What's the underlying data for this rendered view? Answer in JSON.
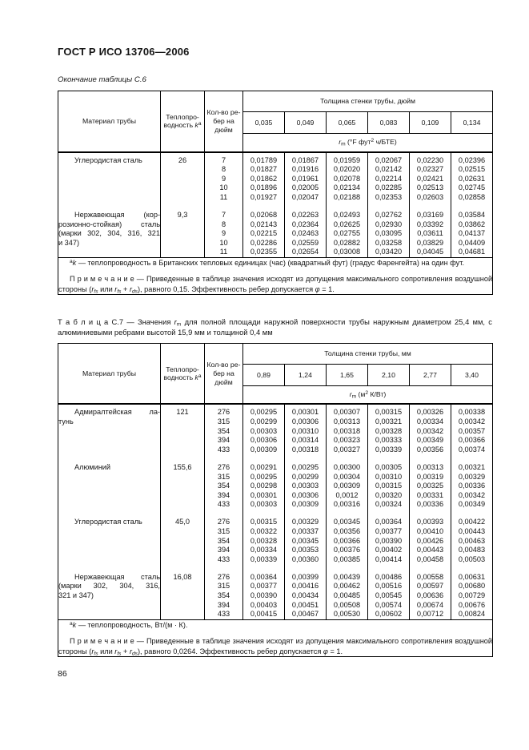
{
  "page": {
    "standard_code": "ГОСТ Р ИСО 13706—2006",
    "continuation_caption": "Окончание таблицы С.6",
    "page_number": "86"
  },
  "tables": [
    {
      "name": "table-c6",
      "caption": null,
      "header": {
        "material": "Материал трубы",
        "conductivity": [
          "Теплопро-\nводность ",
          {
            "t": "k",
            "i": true
          },
          {
            "t": "a",
            "sup": true
          }
        ],
        "fins_per_inch": "Кол-во ре-\nбер на\nдюйм",
        "thickness_title": "Толщина стенки трубы, дюйм",
        "thickness_values": [
          "0,035",
          "0,049",
          "0,065",
          "0,083",
          "0,109",
          "0,134"
        ],
        "rm_caption": [
          {
            "t": "r",
            "i": true
          },
          {
            "t": "m",
            "sub": true
          },
          {
            "t": " (°F фут"
          },
          {
            "t": "2",
            "sup": true
          },
          {
            "t": " ч/БТЕ)"
          }
        ]
      },
      "groups": [
        {
          "material_lines": [
            "Углеродистая сталь"
          ],
          "conductivity": "26",
          "rows": [
            [
              "7",
              "0,01789",
              "0,01867",
              "0,01959",
              "0,02067",
              "0,02230",
              "0,02396"
            ],
            [
              "8",
              "0,01827",
              "0,01916",
              "0,02020",
              "0,02142",
              "0,02327",
              "0,02515"
            ],
            [
              "9",
              "0,01862",
              "0,01961",
              "0,02078",
              "0,02214",
              "0,02421",
              "0,02631"
            ],
            [
              "10",
              "0,01896",
              "0,02005",
              "0,02134",
              "0,02285",
              "0,02513",
              "0,02745"
            ],
            [
              "11",
              "0,01927",
              "0,02047",
              "0,02188",
              "0,02353",
              "0,02603",
              "0,02858"
            ]
          ]
        },
        {
          "material_lines": [
            "Нержавеющая (кор-",
            "розионно-стойкая) сталь",
            "(марки 302, 304, 316, 321",
            "и 347)"
          ],
          "conductivity": "9,3",
          "rows": [
            [
              "7",
              "0,02068",
              "0,02263",
              "0,02493",
              "0,02762",
              "0,03169",
              "0,03584"
            ],
            [
              "8",
              "0,02143",
              "0,02364",
              "0,02625",
              "0,02930",
              "0,03392",
              "0,03862"
            ],
            [
              "9",
              "0,02215",
              "0,02463",
              "0,02755",
              "0,03095",
              "0,03611",
              "0,04137"
            ],
            [
              "10",
              "0,02286",
              "0,02559",
              "0,02882",
              "0,03258",
              "0,03829",
              "0,04409"
            ],
            [
              "11",
              "0,02355",
              "0,02654",
              "0,03008",
              "0,03420",
              "0,04045",
              "0,04681"
            ]
          ]
        }
      ],
      "footnote": [
        {
          "t": "a",
          "sup": true
        },
        {
          "t": "k",
          "i": true
        },
        {
          "t": " — теплопроводность в Британских тепловых единицах (час) (квадратный фут) (градус Фаренгейта) на один фут."
        }
      ],
      "note": [
        {
          "t": "П р и м е ч а н и е — Приведенные в таблице значения исходят из допущения максимального сопротивления воздушной стороны ("
        },
        {
          "t": "r",
          "i": true
        },
        {
          "t": "fs",
          "i": true,
          "sub": true
        },
        {
          "t": " или "
        },
        {
          "t": "r",
          "i": true
        },
        {
          "t": "fs",
          "i": true,
          "sub": true
        },
        {
          "t": " + "
        },
        {
          "t": "r",
          "i": true
        },
        {
          "t": "ds",
          "i": true,
          "sub": true
        },
        {
          "t": "), равного 0,15. Эффективность ребер допускается "
        },
        {
          "t": "φ",
          "i": true
        },
        {
          "t": " = 1."
        }
      ]
    },
    {
      "name": "table-c7",
      "caption": [
        {
          "t": "Т а б л и ц а С.7 — Значения "
        },
        {
          "t": "r",
          "i": true
        },
        {
          "t": "m",
          "sub": true
        },
        {
          "t": " для полной площади наружной поверхности трубы наружным диаметром 25,4 мм, с алюминиевыми ребрами высотой 15,9 мм и толщиной 0,4 мм"
        }
      ],
      "header": {
        "material": "Материал трубы",
        "conductivity": [
          "Теплопро-\nводность ",
          {
            "t": "k",
            "i": true
          },
          {
            "t": "a",
            "sup": true
          }
        ],
        "fins_per_inch": "Кол-во ре-\nбер на\nдюйм",
        "thickness_title": "Толщина стенки трубы, мм",
        "thickness_values": [
          "0,89",
          "1,24",
          "1,65",
          "2,10",
          "2,77",
          "3,40"
        ],
        "rm_caption": [
          {
            "t": "r",
            "i": true
          },
          {
            "t": "m",
            "sub": true
          },
          {
            "t": " (м"
          },
          {
            "t": "2",
            "sup": true
          },
          {
            "t": " К/Вт)"
          }
        ]
      },
      "groups": [
        {
          "material_lines": [
            "Адмиралтейская ла-",
            "тунь"
          ],
          "conductivity": "121",
          "rows": [
            [
              "276",
              "0,00295",
              "0,00301",
              "0,00307",
              "0,00315",
              "0,00326",
              "0,00338"
            ],
            [
              "315",
              "0,00299",
              "0,00306",
              "0,00313",
              "0,00321",
              "0,00334",
              "0,00342"
            ],
            [
              "354",
              "0,00303",
              "0,00310",
              "0,00318",
              "0,00328",
              "0,00342",
              "0,00357"
            ],
            [
              "394",
              "0,00306",
              "0,00314",
              "0,00323",
              "0,00333",
              "0,00349",
              "0,00366"
            ],
            [
              "433",
              "0,00309",
              "0,00318",
              "0,00327",
              "0,00339",
              "0,00356",
              "0,00374"
            ]
          ]
        },
        {
          "material_lines": [
            "Алюминий"
          ],
          "conductivity": "155,6",
          "rows": [
            [
              "276",
              "0,00291",
              "0,00295",
              "0,00300",
              "0,00305",
              "0,00313",
              "0,00321"
            ],
            [
              "315",
              "0,00295",
              "0,00299",
              "0,00304",
              "0,00310",
              "0,00319",
              "0,00329"
            ],
            [
              "354",
              "0,00298",
              "0,00303",
              "0,00309",
              "0,00315",
              "0,00325",
              "0,00336"
            ],
            [
              "394",
              "0,00301",
              "0,00306",
              "0,0012",
              "0,00320",
              "0,00331",
              "0,00342"
            ],
            [
              "433",
              "0,00303",
              "0,00309",
              "0,00316",
              "0,00324",
              "0,00336",
              "0,00349"
            ]
          ]
        },
        {
          "material_lines": [
            "Углеродистая сталь"
          ],
          "conductivity": "45,0",
          "rows": [
            [
              "276",
              "0,00315",
              "0,00329",
              "0,00345",
              "0,00364",
              "0,00393",
              "0,00422"
            ],
            [
              "315",
              "0,00322",
              "0,00337",
              "0,00356",
              "0,00377",
              "0,00410",
              "0,00443"
            ],
            [
              "354",
              "0,00328",
              "0,00345",
              "0,00366",
              "0,00390",
              "0,00426",
              "0,00463"
            ],
            [
              "394",
              "0,00334",
              "0,00353",
              "0,00376",
              "0,00402",
              "0,00443",
              "0,00483"
            ],
            [
              "433",
              "0,00339",
              "0,00360",
              "0,00385",
              "0,00414",
              "0,00458",
              "0,00503"
            ]
          ]
        },
        {
          "material_lines": [
            "Нержавеющая сталь",
            "(марки 302, 304, 316,",
            "321 и 347)"
          ],
          "conductivity": "16,08",
          "rows": [
            [
              "276",
              "0,00364",
              "0,00399",
              "0,00439",
              "0,00486",
              "0,00558",
              "0,00631"
            ],
            [
              "315",
              "0,00377",
              "0,00416",
              "0,00462",
              "0,00516",
              "0,00597",
              "0,00680"
            ],
            [
              "354",
              "0,00390",
              "0,00434",
              "0,00485",
              "0,00545",
              "0,00636",
              "0,00729"
            ],
            [
              "394",
              "0,00403",
              "0,00451",
              "0,00508",
              "0,00574",
              "0,00674",
              "0,00676"
            ],
            [
              "433",
              "0,00415",
              "0,00467",
              "0,00530",
              "0,00602",
              "0,00712",
              "0,00824"
            ]
          ]
        }
      ],
      "footnote": [
        {
          "t": "a",
          "sup": true
        },
        {
          "t": "k",
          "i": true
        },
        {
          "t": " — теплопроводность, Вт/(м · К)."
        }
      ],
      "note": [
        {
          "t": "П р и м е ч а н и е — Приведенные в таблице значения исходят из допущения максимального сопротивления воздушной стороны ("
        },
        {
          "t": "r",
          "i": true
        },
        {
          "t": "fs",
          "i": true,
          "sub": true
        },
        {
          "t": " или "
        },
        {
          "t": "r",
          "i": true
        },
        {
          "t": "fs",
          "i": true,
          "sub": true
        },
        {
          "t": " + "
        },
        {
          "t": "r",
          "i": true
        },
        {
          "t": "ds",
          "i": true,
          "sub": true
        },
        {
          "t": "), равного 0,0264. Эффективность ребер допускается "
        },
        {
          "t": "φ",
          "i": true
        },
        {
          "t": " = 1."
        }
      ]
    }
  ]
}
